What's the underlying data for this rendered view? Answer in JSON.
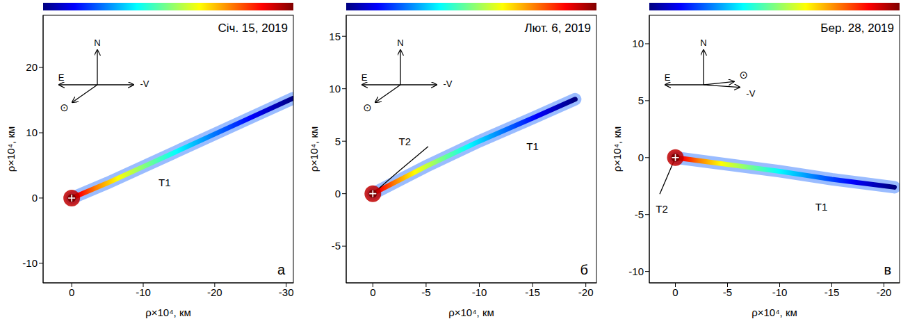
{
  "chart_data": [
    {
      "type": "line",
      "title": "Січ. 15, 2019",
      "panel": "а",
      "x_label": "ρ×10⁴, км",
      "y_label": "ρ×10⁴, км",
      "xlim": [
        4,
        -31
      ],
      "xticks": [
        0,
        -10,
        -20,
        -30
      ],
      "ylim": [
        -13,
        28
      ],
      "yticks": [
        -10,
        0,
        10,
        20
      ],
      "series": [
        {
          "name": "T1",
          "color": "#1e6bff",
          "line_style": "intensity",
          "x": [
            0,
            -5,
            -10,
            -15,
            -20,
            -25,
            -31
          ],
          "values": [
            0,
            2.3,
            4.8,
            7.3,
            9.8,
            12.3,
            15.3
          ]
        }
      ],
      "nucleus": {
        "x": 0,
        "y": 0,
        "color": "#c00000",
        "marker": "plus"
      },
      "annotations": [
        {
          "text": "T1",
          "x": -13,
          "y": 2.2
        }
      ],
      "compass": {
        "north": "N",
        "east": "E",
        "velocity": "-V",
        "sun": "⊙",
        "velocity_angle": 0,
        "sun_angle": 215
      },
      "colorbar": {
        "colors": [
          "#00007f",
          "#0000ff",
          "#007fff",
          "#00ffff",
          "#7fff7f",
          "#ffff00",
          "#ff7f00",
          "#ff0000",
          "#7f0000"
        ]
      }
    },
    {
      "type": "line",
      "title": "Лют. 6, 2019",
      "panel": "б",
      "x_label": "ρ×10⁴, км",
      "y_label": "ρ×10⁴, км",
      "xlim": [
        2.5,
        -21
      ],
      "xticks": [
        0,
        -5,
        -10,
        -15,
        -20
      ],
      "ylim": [
        -8.5,
        17
      ],
      "yticks": [
        -5,
        0,
        5,
        10,
        15
      ],
      "series": [
        {
          "name": "T1",
          "color": "#1e6bff",
          "line_style": "intensity",
          "x": [
            0,
            -5,
            -10,
            -15,
            -19
          ],
          "values": [
            0,
            2.6,
            5.0,
            7.2,
            9.0
          ]
        },
        {
          "name": "T2",
          "color": "#000000",
          "line_style": "solid",
          "x": [
            0,
            -2.5,
            -5.2
          ],
          "values": [
            0,
            2.2,
            4.5
          ]
        }
      ],
      "nucleus": {
        "x": 0,
        "y": 0,
        "color": "#c00000",
        "marker": "plus"
      },
      "annotations": [
        {
          "text": "T1",
          "x": -15,
          "y": 4.4
        },
        {
          "text": "T2",
          "x": -3,
          "y": 4.9
        }
      ],
      "compass": {
        "north": "N",
        "east": "E",
        "velocity": "-V",
        "sun": "⊙",
        "velocity_angle": 0,
        "sun_angle": 215
      },
      "colorbar": {
        "colors": [
          "#00007f",
          "#0000ff",
          "#007fff",
          "#00ffff",
          "#7fff7f",
          "#ffff00",
          "#ff7f00",
          "#ff0000",
          "#7f0000"
        ]
      }
    },
    {
      "type": "line",
      "title": "Бер. 28, 2019",
      "panel": "в",
      "x_label": "ρ×10⁴, км",
      "y_label": "ρ×10⁴, км",
      "xlim": [
        2.5,
        -21.5
      ],
      "xticks": [
        0,
        -5,
        -10,
        -15,
        -20
      ],
      "ylim": [
        -11,
        12.5
      ],
      "yticks": [
        -10,
        -5,
        0,
        5,
        10
      ],
      "series": [
        {
          "name": "T1",
          "color": "#1e6bff",
          "line_style": "intensity",
          "x": [
            0,
            -5,
            -10,
            -15,
            -21
          ],
          "values": [
            0,
            -0.6,
            -1.2,
            -1.9,
            -2.6
          ]
        },
        {
          "name": "T2",
          "color": "#000000",
          "line_style": "solid",
          "x": [
            0,
            0.7,
            1.5
          ],
          "values": [
            0,
            -1.5,
            -3.2
          ]
        }
      ],
      "nucleus": {
        "x": 0,
        "y": 0,
        "color": "#c00000",
        "marker": "plus"
      },
      "annotations": [
        {
          "text": "T1",
          "x": -14,
          "y": -4.4
        },
        {
          "text": "T2",
          "x": 1.3,
          "y": -4.6
        }
      ],
      "compass": {
        "north": "N",
        "east": "E",
        "velocity": "-V",
        "sun": "⊙",
        "velocity_angle": -4,
        "sun_angle": 6
      },
      "colorbar": {
        "colors": [
          "#00007f",
          "#0000ff",
          "#007fff",
          "#00ffff",
          "#7fff7f",
          "#ffff00",
          "#ff7f00",
          "#ff0000",
          "#7f0000"
        ]
      }
    }
  ]
}
